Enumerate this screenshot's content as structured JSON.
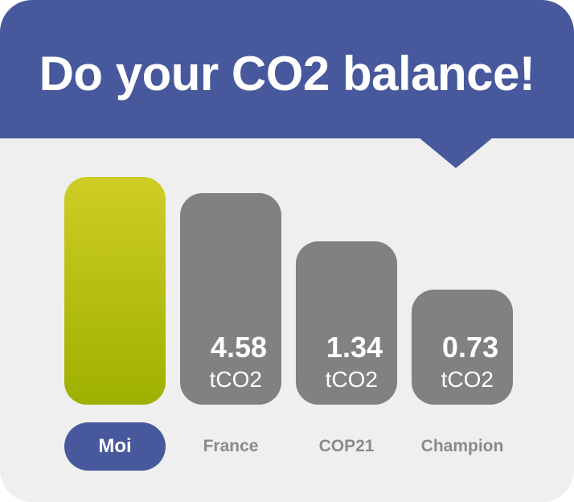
{
  "title": "Do your CO2 balance!",
  "colors": {
    "banner": "#47599c",
    "background": "#efefef",
    "bar_other": "#818181",
    "bar_me_top": "#cfcd26",
    "bar_me_bottom": "#9eb000",
    "label_text": "#8a8a8a"
  },
  "bars": [
    {
      "label": "Moi",
      "value": "",
      "unit": "",
      "selected": true
    },
    {
      "label": "France",
      "value": "4.58",
      "unit": "tCO2",
      "selected": false
    },
    {
      "label": "COP21",
      "value": "1.34",
      "unit": "tCO2",
      "selected": false
    },
    {
      "label": "Champion",
      "value": "0.73",
      "unit": "tCO2",
      "selected": false
    }
  ]
}
